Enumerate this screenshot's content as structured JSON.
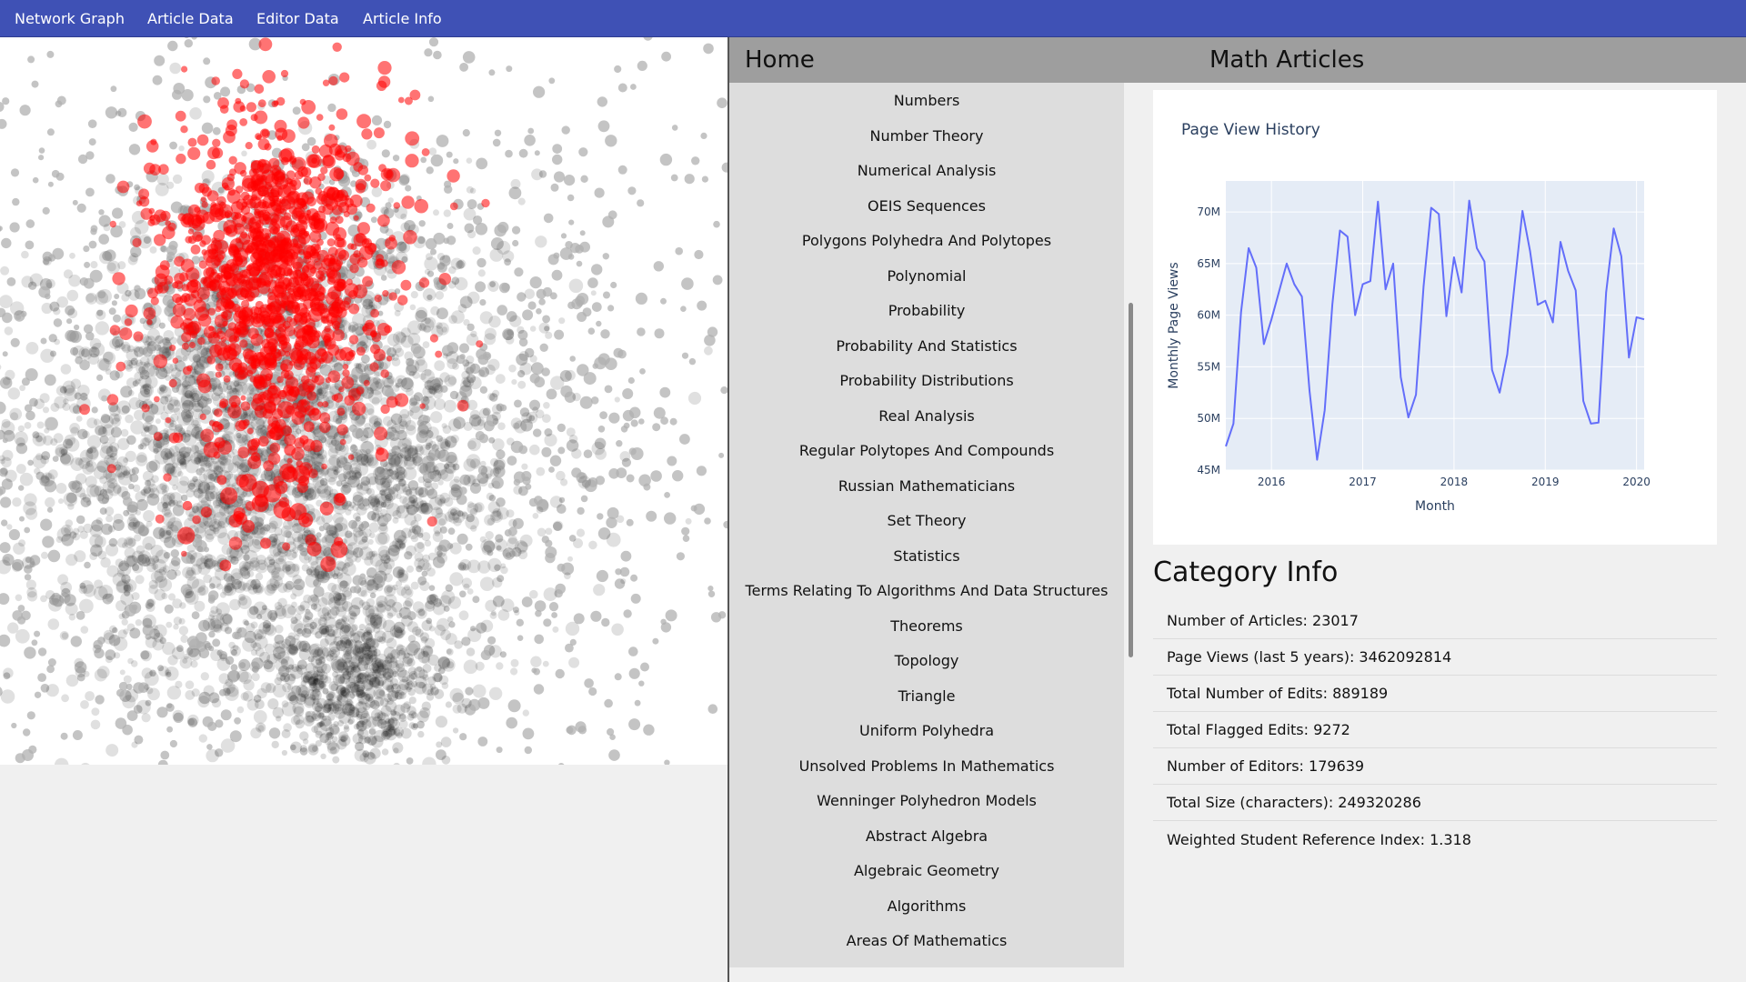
{
  "navbar": {
    "items": [
      "Network Graph",
      "Article Data",
      "Editor Data",
      "Article Info"
    ]
  },
  "header": {
    "home_label": "Home",
    "title": "Math Articles"
  },
  "categories": [
    "Numbers",
    "Number Theory",
    "Numerical Analysis",
    "OEIS Sequences",
    "Polygons Polyhedra And Polytopes",
    "Polynomial",
    "Probability",
    "Probability And Statistics",
    "Probability Distributions",
    "Real Analysis",
    "Regular Polytopes And Compounds",
    "Russian Mathematicians",
    "Set Theory",
    "Statistics",
    "Terms Relating To Algorithms And Data Structures",
    "Theorems",
    "Topology",
    "Triangle",
    "Uniform Polyhedra",
    "Unsolved Problems In Mathematics",
    "Wenninger Polyhedron Models",
    "Abstract Algebra",
    "Algebraic Geometry",
    "Algorithms",
    "Areas Of Mathematics"
  ],
  "chart_data": {
    "type": "line",
    "title": "Page View History",
    "xlabel": "Month",
    "ylabel": "Monthly Page Views",
    "x_ticks": [
      "2016",
      "2017",
      "2018",
      "2019",
      "2020"
    ],
    "y_ticks": [
      "45M",
      "50M",
      "55M",
      "60M",
      "65M",
      "70M"
    ],
    "xlim": [
      "2015-07",
      "2020-02"
    ],
    "ylim": [
      45,
      73
    ],
    "line_color": "#636efa",
    "plot_bg": "#e5ecf6",
    "grid": true,
    "series": [
      {
        "x": [
          "2015-07",
          "2015-08",
          "2015-09",
          "2015-10",
          "2015-11",
          "2015-12",
          "2016-01",
          "2016-02",
          "2016-03",
          "2016-04",
          "2016-05",
          "2016-06",
          "2016-07",
          "2016-08",
          "2016-09",
          "2016-10",
          "2016-11",
          "2016-12",
          "2017-01",
          "2017-02",
          "2017-03",
          "2017-04",
          "2017-05",
          "2017-06",
          "2017-07",
          "2017-08",
          "2017-09",
          "2017-10",
          "2017-11",
          "2017-12",
          "2018-01",
          "2018-02",
          "2018-03",
          "2018-04",
          "2018-05",
          "2018-06",
          "2018-07",
          "2018-08",
          "2018-09",
          "2018-10",
          "2018-11",
          "2018-12",
          "2019-01",
          "2019-02",
          "2019-03",
          "2019-04",
          "2019-05",
          "2019-06",
          "2019-07",
          "2019-08",
          "2019-09",
          "2019-10",
          "2019-11",
          "2019-12",
          "2020-01",
          "2020-02"
        ],
        "values": [
          47.3,
          49.5,
          60.3,
          66.5,
          64.6,
          57.2,
          59.6,
          62.3,
          65.0,
          63.0,
          61.8,
          52.7,
          46.0,
          50.8,
          61.0,
          68.2,
          67.6,
          60.0,
          63.0,
          63.3,
          71.0,
          62.5,
          65.0,
          54.0,
          50.1,
          52.3,
          62.8,
          70.4,
          69.8,
          59.9,
          65.6,
          62.2,
          71.1,
          66.5,
          65.2,
          54.7,
          52.5,
          56.2,
          63.2,
          70.1,
          66.2,
          61.0,
          61.4,
          59.3,
          67.1,
          64.3,
          62.4,
          51.7,
          49.5,
          49.6,
          62.2,
          68.4,
          65.7,
          55.9,
          59.8,
          59.6
        ]
      }
    ]
  },
  "category_info": {
    "title": "Category Info",
    "rows": [
      "Number of Articles: 23017",
      "Page Views (last 5 years): 3462092814",
      "Total Number of Edits: 889189",
      "Total Flagged Edits: 9272",
      "Number of Editors: 179639",
      "Total Size (characters): 249320286",
      "Weighted Student Reference Index: 1.318"
    ]
  },
  "graph": {
    "node_colors": {
      "default": "#000000",
      "outer": "#b0b0b0",
      "highlight": "#ff0000"
    }
  }
}
